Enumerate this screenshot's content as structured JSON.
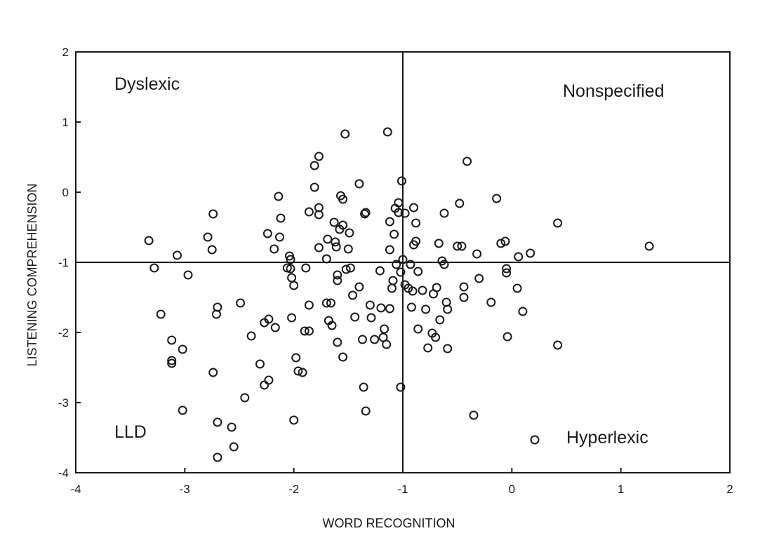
{
  "chart_data": {
    "type": "scatter",
    "xlabel": "WORD RECOGNITION",
    "ylabel": "LISTENING COMPREHENSION",
    "xlim": [
      -4,
      2
    ],
    "ylim": [
      -4,
      2
    ],
    "xticks": [
      "-4",
      "-3",
      "-2",
      "-1",
      "0",
      "1",
      "2"
    ],
    "yticks": [
      "-4",
      "-3",
      "-2",
      "-1",
      "0",
      "1",
      "2"
    ],
    "reference_lines": {
      "x": -1,
      "y": -1
    },
    "quadrant_labels": {
      "top_left": "Dyslexic",
      "top_right": "Nonspecified",
      "bottom_left": "LLD",
      "bottom_right": "Hyperlexic"
    },
    "legend_marker": "open circle",
    "grid": false,
    "points": [
      [
        -3.33,
        -0.69
      ],
      [
        -3.28,
        -1.08
      ],
      [
        -3.22,
        -1.74
      ],
      [
        -3.07,
        -0.9
      ],
      [
        -3.02,
        -2.24
      ],
      [
        -3.02,
        -3.11
      ],
      [
        -3.12,
        -2.11
      ],
      [
        -3.12,
        -2.4
      ],
      [
        -3.12,
        -2.44
      ],
      [
        -2.97,
        -1.18
      ],
      [
        -2.79,
        -0.64
      ],
      [
        -2.75,
        -0.82
      ],
      [
        -2.74,
        -0.31
      ],
      [
        -2.74,
        -2.57
      ],
      [
        -2.7,
        -1.64
      ],
      [
        -2.71,
        -1.74
      ],
      [
        -2.7,
        -3.28
      ],
      [
        -2.7,
        -3.78
      ],
      [
        -2.57,
        -3.35
      ],
      [
        -2.55,
        -3.63
      ],
      [
        -2.49,
        -1.58
      ],
      [
        -2.45,
        -2.93
      ],
      [
        -2.39,
        -2.05
      ],
      [
        -2.31,
        -2.45
      ],
      [
        -2.27,
        -2.75
      ],
      [
        -2.27,
        -1.86
      ],
      [
        -2.23,
        -1.81
      ],
      [
        -2.23,
        -2.68
      ],
      [
        -2.24,
        -0.59
      ],
      [
        -2.18,
        -0.81
      ],
      [
        -2.17,
        -1.93
      ],
      [
        -2.14,
        -0.06
      ],
      [
        -2.13,
        -0.64
      ],
      [
        -2.12,
        -0.37
      ],
      [
        -2.06,
        -1.08
      ],
      [
        -2.04,
        -0.91
      ],
      [
        -2.03,
        -0.96
      ],
      [
        -2.03,
        -1.09
      ],
      [
        -2.02,
        -1.22
      ],
      [
        -2.0,
        -1.33
      ],
      [
        -2.02,
        -1.79
      ],
      [
        -2.0,
        -3.25
      ],
      [
        -1.98,
        -2.36
      ],
      [
        -1.96,
        -2.55
      ],
      [
        -1.92,
        -2.57
      ],
      [
        -1.9,
        -1.98
      ],
      [
        -1.89,
        -1.08
      ],
      [
        -1.86,
        -1.98
      ],
      [
        -1.86,
        -1.61
      ],
      [
        -1.86,
        -0.28
      ],
      [
        -1.81,
        0.07
      ],
      [
        -1.81,
        0.38
      ],
      [
        -1.77,
        0.51
      ],
      [
        -1.77,
        -0.22
      ],
      [
        -1.77,
        -0.32
      ],
      [
        -1.77,
        -0.79
      ],
      [
        -1.7,
        -0.95
      ],
      [
        -1.7,
        -1.58
      ],
      [
        -1.69,
        -0.67
      ],
      [
        -1.68,
        -1.83
      ],
      [
        -1.65,
        -1.9
      ],
      [
        -1.66,
        -1.58
      ],
      [
        -1.63,
        -0.43
      ],
      [
        -1.62,
        -0.71
      ],
      [
        -1.61,
        -0.78
      ],
      [
        -1.6,
        -1.18
      ],
      [
        -1.6,
        -1.26
      ],
      [
        -1.6,
        -2.14
      ],
      [
        -1.58,
        -0.53
      ],
      [
        -1.57,
        -0.05
      ],
      [
        -1.55,
        -0.1
      ],
      [
        -1.53,
        0.83
      ],
      [
        -1.55,
        -0.47
      ],
      [
        -1.55,
        -2.35
      ],
      [
        -1.52,
        -1.1
      ],
      [
        -1.5,
        -0.81
      ],
      [
        -1.49,
        -0.58
      ],
      [
        -1.48,
        -1.08
      ],
      [
        -1.46,
        -1.47
      ],
      [
        -1.44,
        -1.78
      ],
      [
        -1.4,
        0.12
      ],
      [
        -1.4,
        -1.35
      ],
      [
        -1.37,
        -2.1
      ],
      [
        -1.36,
        -2.78
      ],
      [
        -1.35,
        -0.31
      ],
      [
        -1.34,
        -0.29
      ],
      [
        -1.34,
        -3.12
      ],
      [
        -1.3,
        -1.61
      ],
      [
        -1.29,
        -1.79
      ],
      [
        -1.26,
        -2.1
      ],
      [
        -1.21,
        -1.12
      ],
      [
        -1.2,
        -1.65
      ],
      [
        -1.18,
        -2.07
      ],
      [
        -1.17,
        -1.95
      ],
      [
        -1.15,
        -2.17
      ],
      [
        -1.14,
        0.86
      ],
      [
        -1.12,
        -0.42
      ],
      [
        -1.12,
        -0.82
      ],
      [
        -1.12,
        -1.66
      ],
      [
        -1.1,
        -1.37
      ],
      [
        -1.09,
        -1.26
      ],
      [
        -1.08,
        -0.6
      ],
      [
        -1.07,
        -0.23
      ],
      [
        -1.06,
        -1.03
      ],
      [
        -1.04,
        -0.15
      ],
      [
        -1.04,
        -0.29
      ],
      [
        -1.02,
        -1.14
      ],
      [
        -1.0,
        -0.96
      ],
      [
        -0.98,
        -0.3
      ],
      [
        -0.98,
        -1.32
      ],
      [
        -1.01,
        0.16
      ],
      [
        -1.02,
        -2.78
      ],
      [
        -0.95,
        -1.37
      ],
      [
        -0.93,
        -1.03
      ],
      [
        -0.91,
        -1.41
      ],
      [
        -0.92,
        -1.64
      ],
      [
        -0.9,
        -0.22
      ],
      [
        -0.9,
        -0.75
      ],
      [
        -0.88,
        -0.44
      ],
      [
        -0.88,
        -0.7
      ],
      [
        -0.86,
        -1.13
      ],
      [
        -0.86,
        -1.95
      ],
      [
        -0.82,
        -1.4
      ],
      [
        -0.79,
        -1.67
      ],
      [
        -0.77,
        -2.22
      ],
      [
        -0.73,
        -2.01
      ],
      [
        -0.72,
        -1.45
      ],
      [
        -0.7,
        -2.07
      ],
      [
        -0.69,
        -1.36
      ],
      [
        -0.67,
        -0.73
      ],
      [
        -0.66,
        -1.82
      ],
      [
        -0.64,
        -0.98
      ],
      [
        -0.62,
        -1.03
      ],
      [
        -0.62,
        -0.3
      ],
      [
        -0.6,
        -1.57
      ],
      [
        -0.59,
        -1.67
      ],
      [
        -0.59,
        -2.23
      ],
      [
        -0.5,
        -0.77
      ],
      [
        -0.46,
        -0.77
      ],
      [
        -0.48,
        -0.16
      ],
      [
        -0.44,
        -1.35
      ],
      [
        -0.44,
        -1.5
      ],
      [
        -0.41,
        0.44
      ],
      [
        -0.35,
        -3.18
      ],
      [
        -0.32,
        -0.88
      ],
      [
        -0.3,
        -1.23
      ],
      [
        -0.19,
        -1.57
      ],
      [
        -0.14,
        -0.09
      ],
      [
        -0.1,
        -0.73
      ],
      [
        -0.06,
        -0.7
      ],
      [
        -0.05,
        -1.09
      ],
      [
        -0.05,
        -1.15
      ],
      [
        -0.04,
        -2.06
      ],
      [
        0.05,
        -1.37
      ],
      [
        0.1,
        -1.7
      ],
      [
        0.06,
        -0.92
      ],
      [
        0.17,
        -0.87
      ],
      [
        0.42,
        -0.44
      ],
      [
        0.42,
        -2.18
      ],
      [
        1.26,
        -0.77
      ]
    ]
  }
}
